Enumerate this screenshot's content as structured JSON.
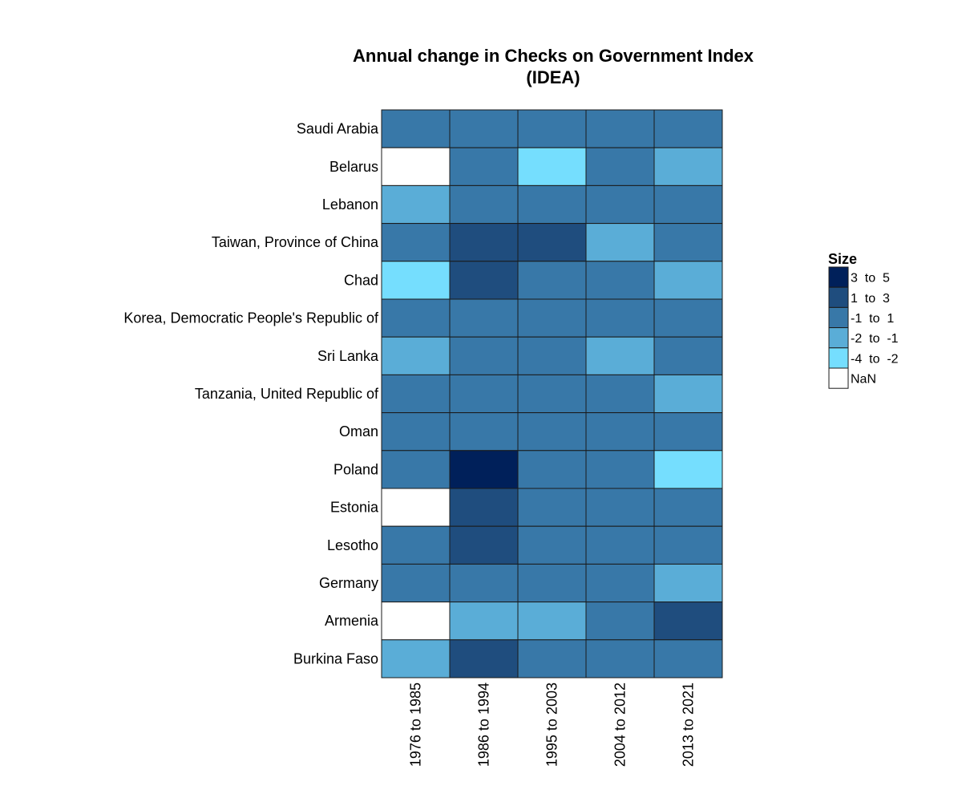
{
  "chart_data": {
    "type": "heatmap",
    "title": [
      "Annual change in Checks on Government Index",
      "(IDEA)"
    ],
    "columns": [
      "1976 to 1985",
      "1986 to 1994",
      "1995 to 2003",
      "2004 to 2012",
      "2013 to 2021"
    ],
    "rows": [
      "Saudi Arabia",
      "Belarus",
      "Lebanon",
      "Taiwan, Province of China",
      "Chad",
      "Korea, Democratic People's Republic of",
      "Sri Lanka",
      "Tanzania, United Republic of",
      "Oman",
      "Poland",
      "Estonia",
      "Lesotho",
      "Germany",
      "Armenia",
      "Burkina Faso"
    ],
    "cells": [
      [
        "-1  to  1",
        "-1  to  1",
        "-1  to  1",
        "-1  to  1",
        "-1  to  1"
      ],
      [
        "NaN",
        "-1  to  1",
        "-4  to  -2",
        "-1  to  1",
        "-2  to  -1"
      ],
      [
        "-2  to  -1",
        "-1  to  1",
        "-1  to  1",
        "-1  to  1",
        "-1  to  1"
      ],
      [
        "-1  to  1",
        "1  to  3",
        "1  to  3",
        "-2  to  -1",
        "-1  to  1"
      ],
      [
        "-4  to  -2",
        "1  to  3",
        "-1  to  1",
        "-1  to  1",
        "-2  to  -1"
      ],
      [
        "-1  to  1",
        "-1  to  1",
        "-1  to  1",
        "-1  to  1",
        "-1  to  1"
      ],
      [
        "-2  to  -1",
        "-1  to  1",
        "-1  to  1",
        "-2  to  -1",
        "-1  to  1"
      ],
      [
        "-1  to  1",
        "-1  to  1",
        "-1  to  1",
        "-1  to  1",
        "-2  to  -1"
      ],
      [
        "-1  to  1",
        "-1  to  1",
        "-1  to  1",
        "-1  to  1",
        "-1  to  1"
      ],
      [
        "-1  to  1",
        "3  to  5",
        "-1  to  1",
        "-1  to  1",
        "-4  to  -2"
      ],
      [
        "NaN",
        "1  to  3",
        "-1  to  1",
        "-1  to  1",
        "-1  to  1"
      ],
      [
        "-1  to  1",
        "1  to  3",
        "-1  to  1",
        "-1  to  1",
        "-1  to  1"
      ],
      [
        "-1  to  1",
        "-1  to  1",
        "-1  to  1",
        "-1  to  1",
        "-2  to  -1"
      ],
      [
        "NaN",
        "-2  to  -1",
        "-2  to  -1",
        "-1  to  1",
        "1  to  3"
      ],
      [
        "-2  to  -1",
        "1  to  3",
        "-1  to  1",
        "-1  to  1",
        "-1  to  1"
      ]
    ],
    "legend": {
      "title": "Size",
      "placement": "right",
      "items": [
        {
          "label": "3  to  5",
          "color": "#00205a"
        },
        {
          "label": "1  to  3",
          "color": "#1f4d7e"
        },
        {
          "label": "-1  to  1",
          "color": "#3878a8"
        },
        {
          "label": "-2  to  -1",
          "color": "#5aadd7"
        },
        {
          "label": "-4  to  -2",
          "color": "#75defe"
        },
        {
          "label": "NaN",
          "color": "#ffffff"
        }
      ]
    },
    "grid": false
  }
}
